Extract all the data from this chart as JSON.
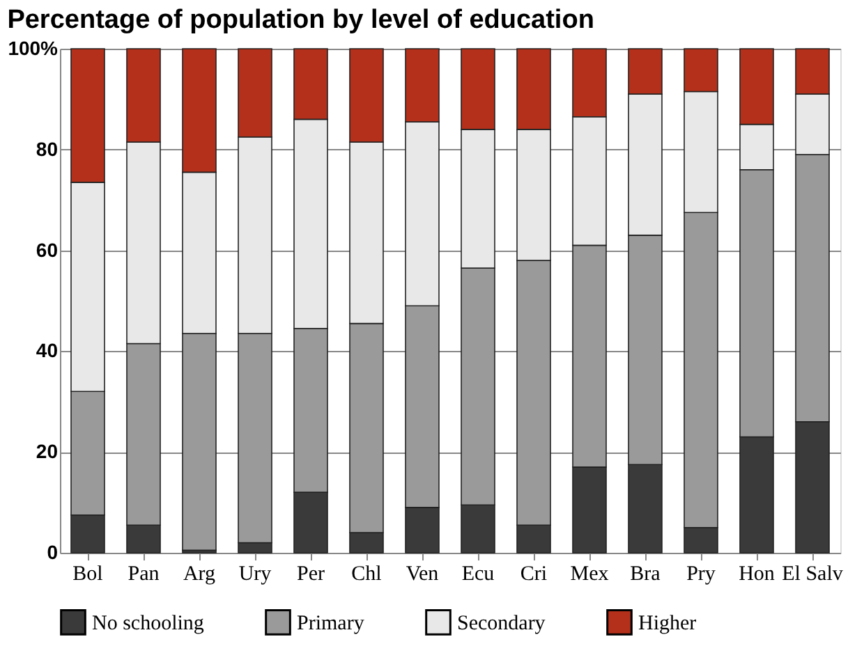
{
  "chart_data": {
    "type": "bar",
    "title": "Percentage of population by level of education",
    "stacked": true,
    "categories": [
      "Bol",
      "Pan",
      "Arg",
      "Ury",
      "Per",
      "Chl",
      "Ven",
      "Ecu",
      "Cri",
      "Mex",
      "Bra",
      "Pry",
      "Hon",
      "El Salv"
    ],
    "series": [
      {
        "name": "No schooling",
        "color": "#3a3a3a",
        "values": [
          7.5,
          5.5,
          0.5,
          2,
          12,
          4,
          9,
          9.5,
          5.5,
          17,
          17.5,
          5,
          23,
          26
        ]
      },
      {
        "name": "Primary",
        "color": "#9a9a9a",
        "values": [
          24.5,
          36,
          43,
          41.5,
          32.5,
          41.5,
          40,
          47,
          52.5,
          44,
          45.5,
          62.5,
          53,
          53
        ]
      },
      {
        "name": "Secondary",
        "color": "#e8e8e8",
        "values": [
          41.5,
          40,
          32,
          39,
          41.5,
          36,
          36.5,
          27.5,
          26,
          25.5,
          28,
          24,
          9,
          12
        ]
      },
      {
        "name": "Higher",
        "color": "#b5301a",
        "values": [
          26.5,
          18.5,
          24.5,
          17.5,
          14,
          18.5,
          14.5,
          16,
          16,
          13.5,
          9,
          8.5,
          15,
          9
        ]
      }
    ],
    "ylim": [
      0,
      100
    ],
    "yticks": [
      0,
      20,
      40,
      60,
      80,
      {
        "value": 100,
        "label": "100%"
      }
    ],
    "grid": "y",
    "legend": "bottom"
  }
}
